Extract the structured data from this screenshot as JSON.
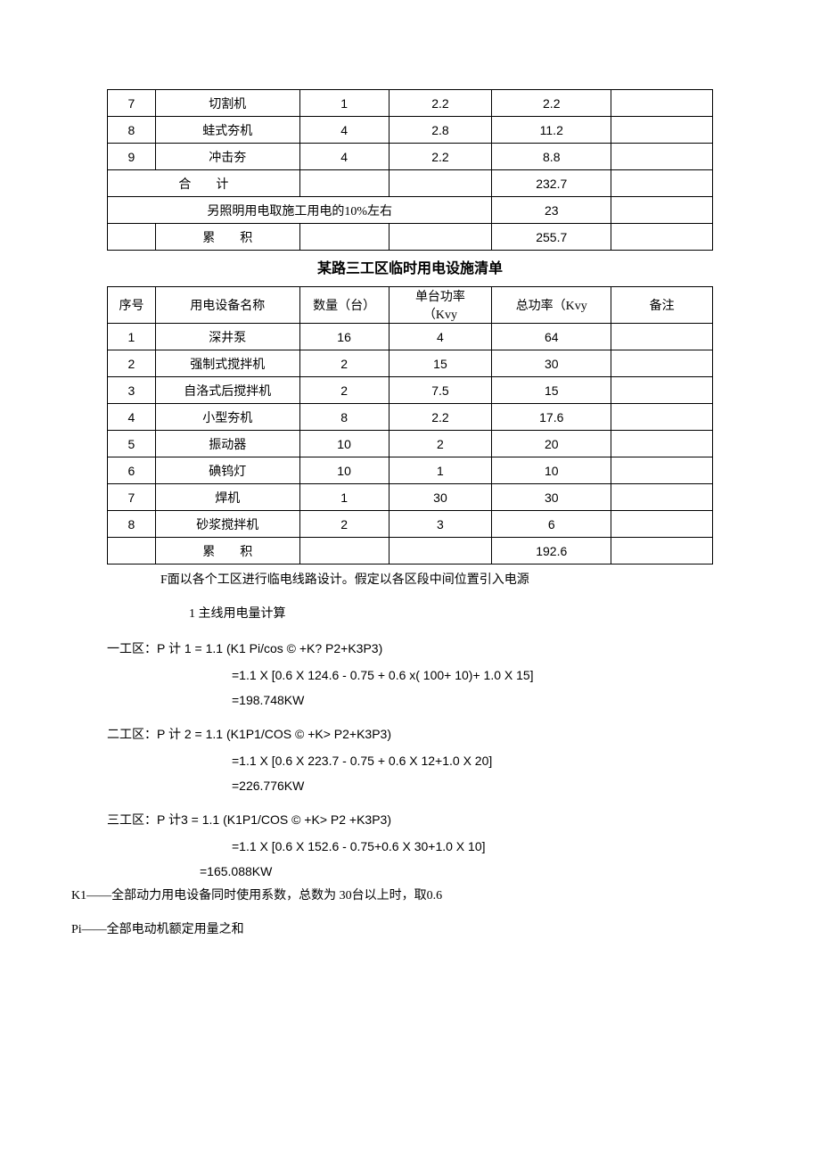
{
  "table1": {
    "rows": [
      {
        "n": "7",
        "name": "切割机",
        "qty": "1",
        "unit": "2.2",
        "total": "2.2",
        "note": ""
      },
      {
        "n": "8",
        "name": "蛙式夯机",
        "qty": "4",
        "unit": "2.8",
        "total": "11.2",
        "note": ""
      },
      {
        "n": "9",
        "name": "冲击夯",
        "qty": "4",
        "unit": "2.2",
        "total": "8.8",
        "note": ""
      }
    ],
    "sum_row": {
      "label_a": "",
      "label_b": "合　　计",
      "total": "232.7"
    },
    "light_row": {
      "label": "另照明用电取施工用电的10%左右",
      "total": "23"
    },
    "acc_row": {
      "label_a": "",
      "label_b": "累　　积",
      "total": "255.7"
    }
  },
  "title2": "某路三工区临时用电设施清单",
  "table2": {
    "head": {
      "c0": "序号",
      "c1": "用电设备名称",
      "c2": "数量（台）",
      "c3a": "单台功率",
      "c3b": "（Kvy",
      "c4": "总功率（Kvy",
      "c5": "备注"
    },
    "rows": [
      {
        "n": "1",
        "name": "深井泵",
        "qty": "16",
        "unit": "4",
        "total": "64",
        "note": ""
      },
      {
        "n": "2",
        "name": "强制式搅拌机",
        "qty": "2",
        "unit": "15",
        "total": "30",
        "note": ""
      },
      {
        "n": "3",
        "name": "自洛式后搅拌机",
        "qty": "2",
        "unit": "7.5",
        "total": "15",
        "note": ""
      },
      {
        "n": "4",
        "name": "小型夯机",
        "qty": "8",
        "unit": "2.2",
        "total": "17.6",
        "note": ""
      },
      {
        "n": "5",
        "name": "振动器",
        "qty": "10",
        "unit": "2",
        "total": "20",
        "note": ""
      },
      {
        "n": "6",
        "name": "碘钨灯",
        "qty": "10",
        "unit": "1",
        "total": "10",
        "note": ""
      },
      {
        "n": "7",
        "name": "焊机",
        "qty": "1",
        "unit": "30",
        "total": "30",
        "note": ""
      },
      {
        "n": "8",
        "name": "砂浆搅拌机",
        "qty": "2",
        "unit": "3",
        "total": "6",
        "note": ""
      }
    ],
    "acc_row": {
      "label_a": "",
      "label_b": "累　　积",
      "total": "192.6"
    }
  },
  "text": {
    "p1": "F面以各个工区进行临电线路设计。假定以各区段中间位置引入电源",
    "p2": "1  主线用电量计算",
    "z1_label_pre": "一工区：",
    "z1_f": "P 计 1 = 1.1 (K1 Pi/cos © +K? P2+K3P3)",
    "z1_c1": "=1.1 X [0.6 X 124.6 - 0.75 + 0.6 x( 100+ 10)+ 1.0 X 15]",
    "z1_c2": "=198.748KW",
    "z2_label_pre": "二工区：",
    "z2_f": "P 计 2 = 1.1 (K1P1/COS © +K> P2+K3P3)",
    "z2_c1": "=1.1 X [0.6 X 223.7 - 0.75 + 0.6 X 12+1.0 X 20]",
    "z2_c2": "=226.776KW",
    "z3_label_pre": "三工区：",
    "z3_f": "P 计3 = 1.1 (K1P1/COS © +K> P2 +K3P3)",
    "z3_c1": "=1.1 X [0.6 X 152.6 - 0.75+0.6 X 30+1.0 X 10]",
    "z3_c2": "=165.088KW",
    "k1": "K1——全部动力用电设备同时使用系数，总数为 30台以上时，取0.6",
    "pi": "Pi——全部电动机额定用量之和"
  }
}
